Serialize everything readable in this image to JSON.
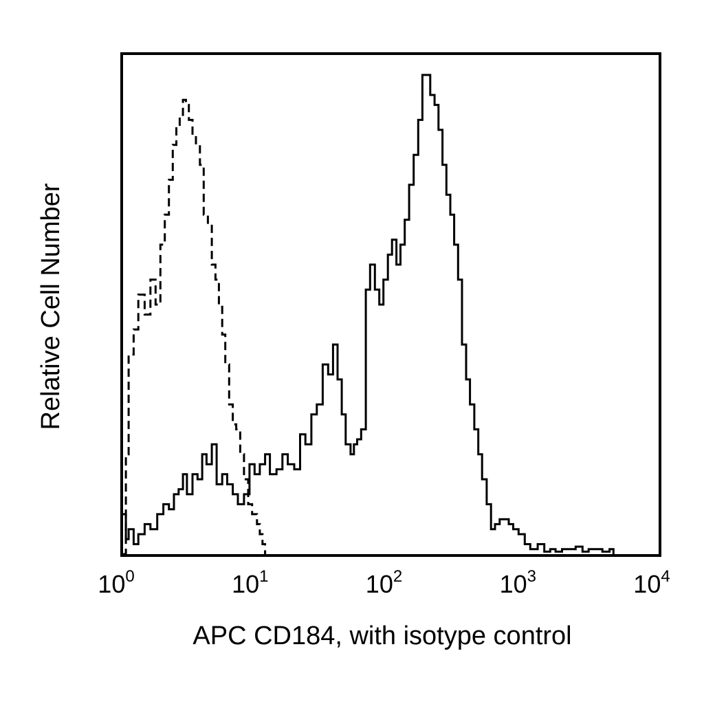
{
  "chart_data": {
    "type": "line",
    "title": "",
    "xlabel": "APC CD184, with isotype control",
    "ylabel": "Relative Cell Number",
    "x_scale": "log10",
    "xlim": [
      1,
      10000
    ],
    "ylim": [
      0,
      100
    ],
    "grid": false,
    "legend": "none",
    "x_ticks": [
      {
        "base": "10",
        "exp": "0"
      },
      {
        "base": "10",
        "exp": "1"
      },
      {
        "base": "10",
        "exp": "2"
      },
      {
        "base": "10",
        "exp": "3"
      },
      {
        "base": "10",
        "exp": "4"
      }
    ],
    "series": [
      {
        "style": "dashed",
        "color": "#000000",
        "x": [
          1.0,
          1.05,
          1.1,
          1.2,
          1.3,
          1.45,
          1.6,
          1.75,
          1.9,
          2.05,
          2.2,
          2.35,
          2.5,
          2.65,
          2.8,
          2.95,
          3.1,
          3.3,
          3.5,
          3.75,
          4.0,
          4.3,
          4.6,
          4.9,
          5.2,
          5.5,
          5.8,
          6.2,
          6.6,
          7.0,
          7.5,
          8.0,
          8.6,
          9.2,
          10.0,
          10.5,
          11.0,
          11.5
        ],
        "y": [
          0,
          20,
          40,
          45,
          52,
          48,
          55,
          50,
          62,
          68,
          75,
          82,
          86,
          88,
          91,
          90,
          87,
          84,
          82,
          78,
          68,
          66,
          58,
          55,
          50,
          44,
          38,
          30,
          26,
          25,
          20,
          15,
          10,
          8,
          6,
          4,
          2,
          0
        ]
      },
      {
        "style": "solid",
        "color": "#000000",
        "x": [
          1.0,
          1.05,
          1.1,
          1.2,
          1.3,
          1.45,
          1.6,
          1.8,
          2.0,
          2.2,
          2.4,
          2.6,
          2.8,
          3.0,
          3.3,
          3.6,
          3.9,
          4.2,
          4.6,
          5.0,
          5.5,
          6.0,
          6.6,
          7.2,
          8.0,
          8.8,
          9.6,
          10.5,
          11.5,
          12.5,
          14.0,
          15.5,
          17.0,
          19.0,
          21.0,
          23.0,
          25.5,
          28.0,
          31.0,
          34.0,
          37.0,
          40.0,
          43.0,
          46.0,
          50.0,
          53.0,
          56.0,
          60.0,
          65.0,
          70.0,
          76.0,
          82.0,
          88.0,
          95.0,
          102.0,
          110.0,
          118.0,
          127.0,
          137.0,
          148.0,
          160.0,
          172.0,
          185.0,
          197.0,
          212.0,
          227.0,
          243.0,
          260.0,
          278.0,
          297.0,
          318.0,
          340.0,
          365.0,
          390.0,
          420.0,
          450.0,
          480.0,
          520.0,
          560.0,
          600.0,
          650.0,
          700.0,
          760.0,
          820.0,
          900.0,
          1000.0,
          1100.0,
          1250.0,
          1400.0,
          1550.0,
          1700.0,
          1900.0,
          2100.0,
          2400.0,
          2700.0,
          3000.0,
          3400.0,
          3800.0,
          4300.0,
          4600.0
        ],
        "y": [
          8,
          3,
          5,
          2,
          4,
          6,
          5,
          8,
          10,
          9,
          12,
          13,
          16,
          12,
          16,
          15,
          20,
          18,
          22,
          14,
          16,
          14,
          12,
          10,
          12,
          18,
          16,
          18,
          20,
          16,
          17,
          20,
          18,
          17,
          24,
          22,
          28,
          30,
          38,
          36,
          42,
          35,
          28,
          22,
          20,
          22,
          23,
          25,
          53,
          58,
          53,
          50,
          55,
          60,
          63,
          58,
          62,
          67,
          74,
          80,
          87,
          96,
          96,
          92,
          90,
          85,
          78,
          72,
          68,
          62,
          55,
          42,
          35,
          30,
          25,
          20,
          15,
          10,
          5,
          6,
          7,
          7,
          6,
          5,
          4,
          2,
          1,
          2,
          0.5,
          1,
          0.5,
          1,
          1,
          1.5,
          0.5,
          1,
          1,
          0.5,
          1,
          0
        ]
      }
    ]
  }
}
